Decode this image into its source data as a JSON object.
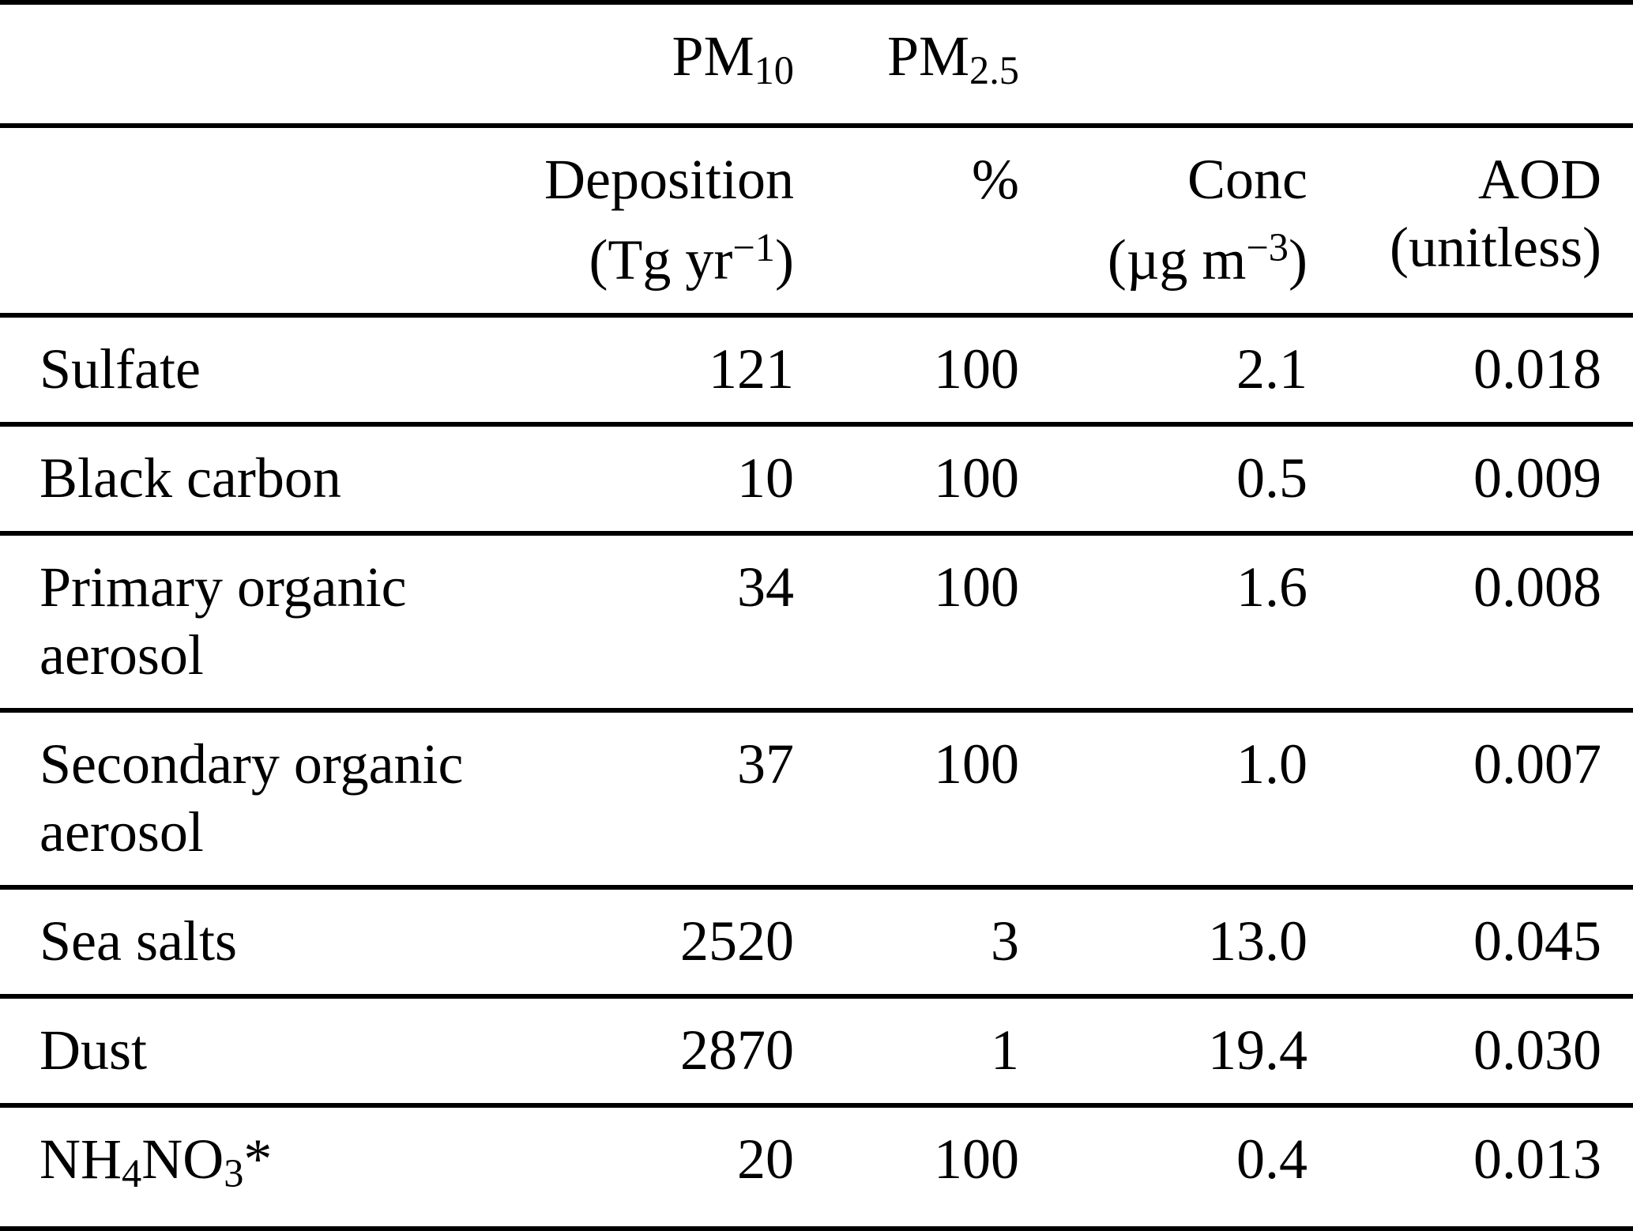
{
  "page": {
    "background_color": "#ffffff",
    "text_color": "#000000",
    "rule_color": "#000000"
  },
  "table": {
    "column_group_headers": [
      {
        "id": "pm10",
        "parts": [
          {
            "t": "PM"
          },
          {
            "t": "10",
            "sub": true
          }
        ]
      },
      {
        "id": "pm25",
        "parts": [
          {
            "t": "PM"
          },
          {
            "t": "2.5",
            "sub": true
          }
        ]
      }
    ],
    "columns": [
      {
        "id": "species",
        "header_parts": [],
        "unit_parts": []
      },
      {
        "id": "deposition",
        "header_parts": [
          {
            "t": "Deposition"
          }
        ],
        "unit_parts": [
          {
            "t": "(Tg yr"
          },
          {
            "t": "−1",
            "sup": true
          },
          {
            "t": ")"
          }
        ]
      },
      {
        "id": "pm25-percent",
        "header_parts": [
          {
            "t": "%"
          }
        ],
        "unit_parts": []
      },
      {
        "id": "conc",
        "header_parts": [
          {
            "t": "Conc"
          }
        ],
        "unit_parts": [
          {
            "t": "(µg m"
          },
          {
            "t": "−3",
            "sup": true
          },
          {
            "t": ")"
          }
        ]
      },
      {
        "id": "aod",
        "header_parts": [
          {
            "t": "AOD"
          }
        ],
        "unit_parts": [
          {
            "t": "(unitless)"
          }
        ]
      }
    ],
    "rows": [
      {
        "label_parts": [
          {
            "t": "Sulfate"
          }
        ],
        "values": [
          "121",
          "100",
          "2.1",
          "0.018"
        ]
      },
      {
        "label_parts": [
          {
            "t": "Black carbon"
          }
        ],
        "values": [
          "10",
          "100",
          "0.5",
          "0.009"
        ]
      },
      {
        "label_parts": [
          {
            "t": "Primary organic aerosol"
          }
        ],
        "values": [
          "34",
          "100",
          "1.6",
          "0.008"
        ]
      },
      {
        "label_parts": [
          {
            "t": "Secondary organic aerosol"
          }
        ],
        "values": [
          "37",
          "100",
          "1.0",
          "0.007"
        ]
      },
      {
        "label_parts": [
          {
            "t": "Sea salts"
          }
        ],
        "values": [
          "2520",
          "3",
          "13.0",
          "0.045"
        ]
      },
      {
        "label_parts": [
          {
            "t": "Dust"
          }
        ],
        "values": [
          "2870",
          "1",
          "19.4",
          "0.030"
        ]
      },
      {
        "label_parts": [
          {
            "t": "NH"
          },
          {
            "t": "4",
            "sub": true
          },
          {
            "t": "NO"
          },
          {
            "t": "3",
            "sub": true
          },
          {
            "t": "*"
          }
        ],
        "values": [
          "20",
          "100",
          "0.4",
          "0.013"
        ]
      }
    ]
  }
}
